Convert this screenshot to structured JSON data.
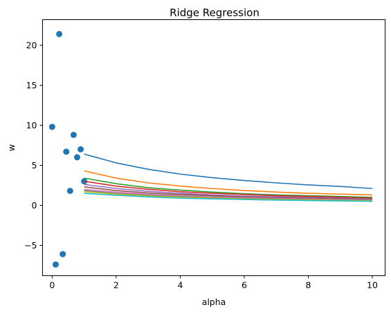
{
  "chart_data": {
    "type": "line",
    "title": "Ridge Regression",
    "xlabel": "alpha",
    "ylabel": "w",
    "xlim": [
      -0.3,
      10.4
    ],
    "ylim": [
      -8.8,
      23.2
    ],
    "xticks": [
      0,
      2,
      4,
      6,
      8,
      10
    ],
    "yticks": [
      -5,
      0,
      5,
      10,
      15,
      20
    ],
    "xtick_labels": [
      "0",
      "2",
      "4",
      "6",
      "8",
      "10"
    ],
    "ytick_labels": [
      "−5",
      "0",
      "5",
      "10",
      "15",
      "20"
    ],
    "grid": false,
    "legend": "none",
    "scatter": {
      "color": "#1f77b4",
      "points": [
        {
          "x": 0.0,
          "y": 9.8
        },
        {
          "x": 0.11,
          "y": -7.4
        },
        {
          "x": 0.22,
          "y": 21.4
        },
        {
          "x": 0.33,
          "y": -6.1
        },
        {
          "x": 0.44,
          "y": 6.7
        },
        {
          "x": 0.56,
          "y": 1.8
        },
        {
          "x": 0.67,
          "y": 8.8
        },
        {
          "x": 0.78,
          "y": 6.0
        },
        {
          "x": 0.89,
          "y": 7.0
        },
        {
          "x": 1.0,
          "y": 3.0
        }
      ]
    },
    "x": [
      1,
      2,
      3,
      4,
      5,
      6,
      7,
      8,
      9,
      10
    ],
    "series": [
      {
        "color": "#1f77b4",
        "values": [
          6.4,
          5.3,
          4.5,
          3.9,
          3.45,
          3.1,
          2.8,
          2.55,
          2.35,
          2.1
        ]
      },
      {
        "color": "#ff7f0e",
        "values": [
          4.3,
          3.4,
          2.8,
          2.4,
          2.1,
          1.85,
          1.65,
          1.5,
          1.4,
          1.3
        ]
      },
      {
        "color": "#2ca02c",
        "values": [
          3.4,
          2.7,
          2.2,
          1.9,
          1.65,
          1.45,
          1.3,
          1.2,
          1.1,
          1.0
        ]
      },
      {
        "color": "#d62728",
        "values": [
          3.0,
          2.4,
          2.0,
          1.7,
          1.5,
          1.35,
          1.2,
          1.1,
          1.0,
          0.9
        ]
      },
      {
        "color": "#9467bd",
        "values": [
          2.6,
          2.1,
          1.75,
          1.5,
          1.3,
          1.15,
          1.05,
          0.95,
          0.88,
          0.8
        ]
      },
      {
        "color": "#8c564b",
        "values": [
          2.3,
          1.85,
          1.55,
          1.35,
          1.2,
          1.05,
          0.95,
          0.87,
          0.8,
          0.75
        ]
      },
      {
        "color": "#e377c2",
        "values": [
          2.0,
          1.65,
          1.4,
          1.2,
          1.05,
          0.95,
          0.86,
          0.78,
          0.72,
          0.67
        ]
      },
      {
        "color": "#7f7f7f",
        "values": [
          1.85,
          1.5,
          1.28,
          1.1,
          0.97,
          0.87,
          0.79,
          0.72,
          0.66,
          0.62
        ]
      },
      {
        "color": "#bcbd22",
        "values": [
          1.7,
          1.4,
          1.18,
          1.02,
          0.9,
          0.8,
          0.73,
          0.66,
          0.61,
          0.57
        ]
      },
      {
        "color": "#17becf",
        "values": [
          1.5,
          1.25,
          1.05,
          0.9,
          0.8,
          0.72,
          0.65,
          0.59,
          0.54,
          0.5
        ]
      }
    ]
  }
}
